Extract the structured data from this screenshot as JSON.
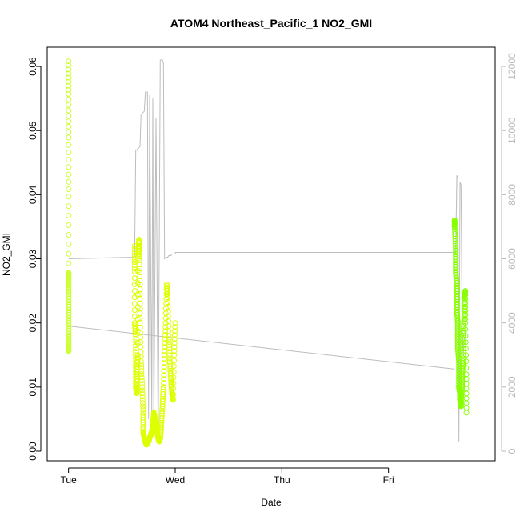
{
  "chart_data": {
    "type": "scatter",
    "title": "ATOM4 Northeast_Pacific_1 NO2_GMI",
    "xlabel": "Date",
    "ylabel": "NO2_GMI",
    "x_tick_labels": [
      "Tue",
      "Wed",
      "Thu",
      "Fri"
    ],
    "y_ticks": [
      "0.00",
      "0.01",
      "0.02",
      "0.03",
      "0.04",
      "0.05",
      "0.06"
    ],
    "y2_ticks": [
      "0",
      "2000",
      "4000",
      "6000",
      "8000",
      "10000",
      "12000"
    ],
    "xlim_days": [
      -0.2,
      4.0
    ],
    "ylim": [
      -0.0015,
      0.063
    ],
    "y2lim": [
      -300,
      12600
    ],
    "colors": {
      "points_day1": "#ccff33",
      "points_day2": "#ddff00",
      "points_day4": "#88ff00",
      "secondary_line": "#bdbdbd",
      "trend_line": "#bdbdbd",
      "right_axis": "#b8b8b8"
    },
    "series": [
      {
        "values_day_x": [
          0.0,
          0.0,
          0.0,
          0.0,
          0.0,
          0.0,
          0.0,
          0.0,
          0.0,
          0.0,
          0.0,
          0.0,
          0.0
        ],
        "values_y": [
          0.0608,
          0.0557,
          0.0489,
          0.0397,
          0.0278,
          0.027,
          0.0258,
          0.024,
          0.022,
          0.02,
          0.018,
          0.0165,
          0.0156
        ]
      },
      {
        "values_day_x": [
          0.62,
          0.62,
          0.62,
          0.63,
          0.63,
          0.63,
          0.64,
          0.64,
          0.65,
          0.65,
          0.66,
          0.66,
          0.67,
          0.67,
          0.68,
          0.69,
          0.7,
          0.7,
          0.71,
          0.72,
          0.73,
          0.74,
          0.75,
          0.76,
          0.77,
          0.78,
          0.79,
          0.8,
          0.81,
          0.82,
          0.83,
          0.84,
          0.85,
          0.86,
          0.87,
          0.88,
          0.89,
          0.9,
          0.91,
          0.92,
          0.93,
          0.94,
          0.95,
          0.96,
          0.97,
          0.98,
          0.99,
          1.0
        ],
        "values_y": [
          0.032,
          0.028,
          0.02,
          0.018,
          0.014,
          0.01,
          0.009,
          0.012,
          0.015,
          0.03,
          0.033,
          0.031,
          0.026,
          0.02,
          0.014,
          0.01,
          0.006,
          0.003,
          0.002,
          0.0015,
          0.001,
          0.0012,
          0.0015,
          0.002,
          0.0025,
          0.003,
          0.004,
          0.006,
          0.005,
          0.004,
          0.003,
          0.002,
          0.0015,
          0.002,
          0.004,
          0.007,
          0.01,
          0.015,
          0.02,
          0.026,
          0.024,
          0.018,
          0.014,
          0.011,
          0.009,
          0.008,
          0.015,
          0.02
        ]
      },
      {
        "values_day_x": [
          3.62,
          3.62,
          3.63,
          3.63,
          3.63,
          3.64,
          3.64,
          3.64,
          3.65,
          3.65,
          3.65,
          3.66,
          3.66,
          3.66,
          3.67,
          3.67,
          3.68,
          3.68,
          3.69,
          3.69,
          3.7,
          3.7,
          3.71,
          3.71,
          3.72,
          3.72,
          3.73,
          3.73
        ],
        "values_y": [
          0.036,
          0.035,
          0.032,
          0.03,
          0.028,
          0.026,
          0.024,
          0.022,
          0.02,
          0.018,
          0.016,
          0.014,
          0.012,
          0.01,
          0.009,
          0.008,
          0.007,
          0.008,
          0.01,
          0.012,
          0.014,
          0.018,
          0.021,
          0.024,
          0.025,
          0.02,
          0.012,
          0.006
        ]
      }
    ],
    "secondary_series": {
      "axis": "right",
      "values_day_x": [
        0.0,
        0.62,
        0.63,
        0.64,
        0.67,
        0.68,
        0.71,
        0.72,
        0.74,
        0.75,
        0.76,
        0.78,
        0.79,
        0.8,
        0.82,
        0.84,
        0.86,
        0.88,
        0.89,
        0.9,
        0.92,
        0.93,
        0.94,
        0.95,
        0.96,
        0.97,
        1.0,
        1.0,
        3.62,
        3.63,
        3.64,
        3.65,
        3.66,
        3.67,
        3.68,
        3.69,
        3.7,
        3.71,
        3.72
      ],
      "values_y": [
        6000,
        6050,
        9400,
        9400,
        9500,
        10500,
        10600,
        11200,
        11200,
        1000,
        11100,
        1200,
        11000,
        800,
        10400,
        300,
        12200,
        12200,
        12100,
        6000,
        6050,
        6050,
        6100,
        6100,
        6100,
        6150,
        6150,
        6200,
        6200,
        6200,
        8600,
        8500,
        300,
        8400,
        8300,
        4000,
        3000,
        3500,
        3600
      ]
    },
    "trend_line": {
      "values_day_x": [
        0.0,
        3.62
      ],
      "values_y": [
        0.0195,
        0.0128
      ]
    }
  }
}
